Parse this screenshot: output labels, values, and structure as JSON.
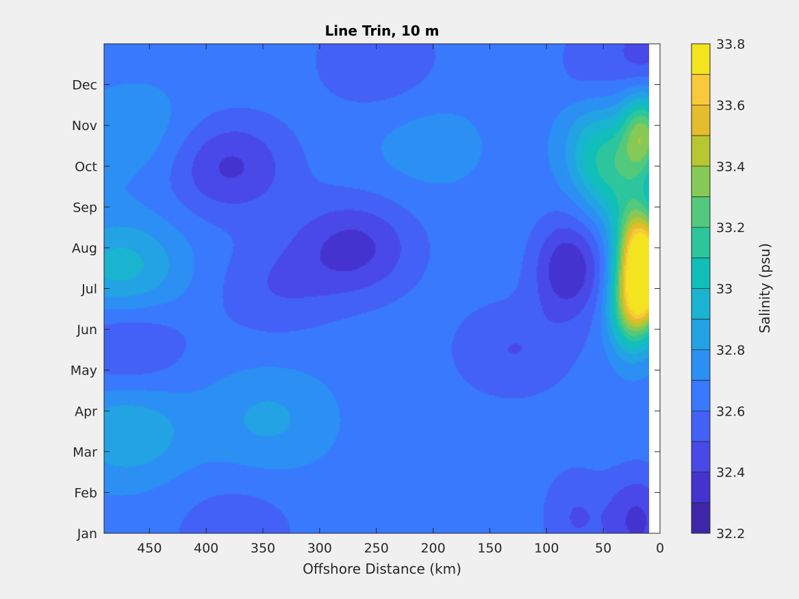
{
  "chart_data": {
    "type": "heatmap",
    "title": "Line Trin, 10 m",
    "xlabel": "Offshore Distance (km)",
    "ylabel": "",
    "x_ticks": [
      "450",
      "400",
      "350",
      "300",
      "250",
      "200",
      "150",
      "100",
      "50",
      "0"
    ],
    "y_ticks": [
      "Jan",
      "Feb",
      "Mar",
      "Apr",
      "May",
      "Jun",
      "Jul",
      "Aug",
      "Sep",
      "Oct",
      "Nov",
      "Dec"
    ],
    "xlim": [
      490,
      0
    ],
    "x_reversed": true,
    "colorbar": {
      "label": "Salinity (psu)",
      "ticks": [
        "33.8",
        "33.6",
        "33.4",
        "33.2",
        "33",
        "32.8",
        "32.6",
        "32.4",
        "32.2"
      ],
      "range": [
        32.2,
        33.8
      ],
      "level_step": 0.1
    },
    "colormap": [
      "#3e26a8",
      "#4433cf",
      "#4849e8",
      "#4361f6",
      "#3979fd",
      "#2c8ff3",
      "#23a2e4",
      "#19b5d0",
      "#10bfb9",
      "#2cc59c",
      "#52c97c",
      "#86c956",
      "#b8c631",
      "#e4bd2c",
      "#f8ca39",
      "#f3e41f"
    ],
    "notes": "Filled contour of near-surface (10 m) salinity vs offshore distance and month. Background ~32.6–32.7 psu; low-salinity minima ~32.4 near 380 km (Oct), 270 km (Aug) and inshore in Jan–Feb; high-salinity maximum ~33.7 near 15 km in Jul; elevated ~32.9 offshore near 470 km in Jul–Aug and Mar.",
    "features": [
      {
        "x": 475,
        "month": 7.5,
        "value": 32.95
      },
      {
        "x": 470,
        "month": 3.5,
        "value": 32.9
      },
      {
        "x": 345,
        "month": 3.8,
        "value": 32.82
      },
      {
        "x": 460,
        "month": 10.8,
        "value": 32.78
      },
      {
        "x": 380,
        "month": 10,
        "value": 32.38
      },
      {
        "x": 270,
        "month": 8,
        "value": 32.37
      },
      {
        "x": 250,
        "month": 12.6,
        "value": 32.5
      },
      {
        "x": 375,
        "month": 1,
        "value": 32.52
      },
      {
        "x": 470,
        "month": 5.6,
        "value": 32.48
      },
      {
        "x": 340,
        "month": 7,
        "value": 32.52
      },
      {
        "x": 205,
        "month": 10.5,
        "value": 32.75
      },
      {
        "x": 85,
        "month": 7.5,
        "value": 32.4
      },
      {
        "x": 70,
        "month": 7.5,
        "value": 32.55
      },
      {
        "x": 130,
        "month": 5.5,
        "value": 32.5
      },
      {
        "x": 20,
        "month": 1.3,
        "value": 32.38
      },
      {
        "x": 75,
        "month": 1.4,
        "value": 32.5
      },
      {
        "x": 15,
        "month": 12.7,
        "value": 32.45
      },
      {
        "x": 65,
        "month": 12.5,
        "value": 32.55
      },
      {
        "x": 12,
        "month": 7.3,
        "value": 33.72
      },
      {
        "x": 20,
        "month": 8.2,
        "value": 33.3
      },
      {
        "x": 25,
        "month": 6.5,
        "value": 33.3
      },
      {
        "x": 15,
        "month": 10.8,
        "value": 33.3
      },
      {
        "x": 40,
        "month": 9.8,
        "value": 33.0
      },
      {
        "x": 60,
        "month": 10.5,
        "value": 32.9
      }
    ]
  }
}
